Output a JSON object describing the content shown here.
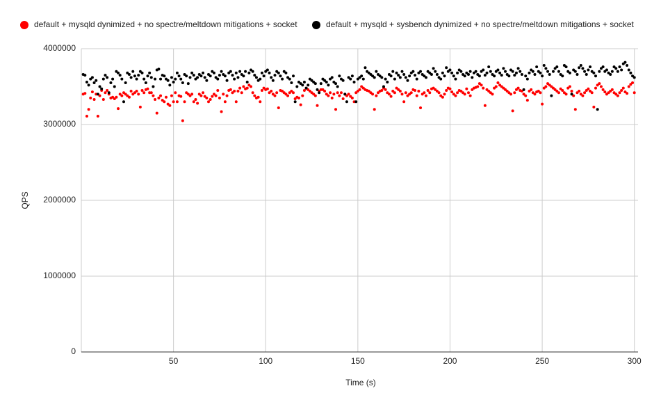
{
  "chart_data": {
    "type": "scatter",
    "x_label": "Time (s)",
    "y_label": "QPS",
    "xlim": [
      0,
      302
    ],
    "xticks": [
      50,
      100,
      150,
      200,
      250,
      300
    ],
    "ylim": [
      0,
      4000000
    ],
    "yticks": [
      0,
      1000000,
      2000000,
      3000000,
      4000000
    ],
    "grid": true,
    "legend": "top",
    "x": [
      1,
      2,
      3,
      4,
      5,
      6,
      7,
      8,
      9,
      10,
      11,
      12,
      13,
      14,
      15,
      16,
      17,
      18,
      19,
      20,
      21,
      22,
      23,
      24,
      25,
      26,
      27,
      28,
      29,
      30,
      31,
      32,
      33,
      34,
      35,
      36,
      37,
      38,
      39,
      40,
      41,
      42,
      43,
      44,
      45,
      46,
      47,
      48,
      49,
      50,
      51,
      52,
      53,
      54,
      55,
      56,
      57,
      58,
      59,
      60,
      61,
      62,
      63,
      64,
      65,
      66,
      67,
      68,
      69,
      70,
      71,
      72,
      73,
      74,
      75,
      76,
      77,
      78,
      79,
      80,
      81,
      82,
      83,
      84,
      85,
      86,
      87,
      88,
      89,
      90,
      91,
      92,
      93,
      94,
      95,
      96,
      97,
      98,
      99,
      100,
      101,
      102,
      103,
      104,
      105,
      106,
      107,
      108,
      109,
      110,
      111,
      112,
      113,
      114,
      115,
      116,
      117,
      118,
      119,
      120,
      121,
      122,
      123,
      124,
      125,
      126,
      127,
      128,
      129,
      130,
      131,
      132,
      133,
      134,
      135,
      136,
      137,
      138,
      139,
      140,
      141,
      142,
      143,
      144,
      145,
      146,
      147,
      148,
      149,
      150,
      151,
      152,
      153,
      154,
      155,
      156,
      157,
      158,
      159,
      160,
      161,
      162,
      163,
      164,
      165,
      166,
      167,
      168,
      169,
      170,
      171,
      172,
      173,
      174,
      175,
      176,
      177,
      178,
      179,
      180,
      181,
      182,
      183,
      184,
      185,
      186,
      187,
      188,
      189,
      190,
      191,
      192,
      193,
      194,
      195,
      196,
      197,
      198,
      199,
      200,
      201,
      202,
      203,
      204,
      205,
      206,
      207,
      208,
      209,
      210,
      211,
      212,
      213,
      214,
      215,
      216,
      217,
      218,
      219,
      220,
      221,
      222,
      223,
      224,
      225,
      226,
      227,
      228,
      229,
      230,
      231,
      232,
      233,
      234,
      235,
      236,
      237,
      238,
      239,
      240,
      241,
      242,
      243,
      244,
      245,
      246,
      247,
      248,
      249,
      250,
      251,
      252,
      253,
      254,
      255,
      256,
      257,
      258,
      259,
      260,
      261,
      262,
      263,
      264,
      265,
      266,
      267,
      268,
      269,
      270,
      271,
      272,
      273,
      274,
      275,
      276,
      277,
      278,
      279,
      280,
      281,
      282,
      283,
      284,
      285,
      286,
      287,
      288,
      289,
      290,
      291,
      292,
      293,
      294,
      295,
      296,
      297,
      298,
      299,
      300
    ],
    "series": [
      {
        "name": "default + mysqld dynimized + no spectre/meltdown mitigations + socket",
        "color": "#ff0000",
        "values": [
          3400000,
          3410000,
          3110000,
          3200000,
          3350000,
          3430000,
          3330000,
          3400000,
          3110000,
          3380000,
          3450000,
          3330000,
          3420000,
          3450000,
          3400000,
          3350000,
          3360000,
          3340000,
          3360000,
          3210000,
          3400000,
          3380000,
          3420000,
          3400000,
          3380000,
          3360000,
          3440000,
          3400000,
          3420000,
          3440000,
          3400000,
          3230000,
          3450000,
          3420000,
          3460000,
          3470000,
          3420000,
          3420000,
          3380000,
          3330000,
          3150000,
          3350000,
          3380000,
          3320000,
          3300000,
          3360000,
          3270000,
          3250000,
          3380000,
          3300000,
          3420000,
          3300000,
          3380000,
          3370000,
          3050000,
          3300000,
          3420000,
          3400000,
          3380000,
          3400000,
          3300000,
          3330000,
          3280000,
          3400000,
          3380000,
          3420000,
          3370000,
          3350000,
          3300000,
          3330000,
          3370000,
          3400000,
          3380000,
          3450000,
          3350000,
          3170000,
          3400000,
          3300000,
          3380000,
          3450000,
          3460000,
          3420000,
          3440000,
          3300000,
          3440000,
          3480000,
          3420000,
          3500000,
          3470000,
          3480000,
          3520000,
          3500000,
          3420000,
          3380000,
          3350000,
          3360000,
          3300000,
          3450000,
          3480000,
          3460000,
          3470000,
          3420000,
          3440000,
          3400000,
          3380000,
          3420000,
          3220000,
          3450000,
          3440000,
          3420000,
          3400000,
          3380000,
          3420000,
          3440000,
          3420000,
          3340000,
          3360000,
          3350000,
          3260000,
          3380000,
          3450000,
          3480000,
          3460000,
          3440000,
          3420000,
          3400000,
          3380000,
          3250000,
          3440000,
          3460000,
          3460000,
          3440000,
          3400000,
          3380000,
          3420000,
          3350000,
          3400000,
          3200000,
          3420000,
          3380000,
          3420000,
          3340000,
          3400000,
          3380000,
          3400000,
          3370000,
          3350000,
          3300000,
          3420000,
          3440000,
          3460000,
          3500000,
          3480000,
          3460000,
          3450000,
          3440000,
          3420000,
          3400000,
          3200000,
          3380000,
          3420000,
          3440000,
          3450000,
          3480000,
          3460000,
          3420000,
          3400000,
          3370000,
          3440000,
          3420000,
          3480000,
          3460000,
          3440000,
          3400000,
          3300000,
          3420000,
          3380000,
          3400000,
          3420000,
          3460000,
          3450000,
          3380000,
          3440000,
          3220000,
          3400000,
          3420000,
          3380000,
          3450000,
          3420000,
          3470000,
          3480000,
          3460000,
          3440000,
          3420000,
          3380000,
          3360000,
          3400000,
          3450000,
          3480000,
          3470000,
          3430000,
          3400000,
          3380000,
          3420000,
          3450000,
          3440000,
          3420000,
          3400000,
          3470000,
          3420000,
          3380000,
          3460000,
          3480000,
          3490000,
          3500000,
          3540000,
          3520000,
          3480000,
          3250000,
          3460000,
          3440000,
          3420000,
          3400000,
          3480000,
          3500000,
          3550000,
          3520000,
          3500000,
          3480000,
          3460000,
          3440000,
          3420000,
          3400000,
          3180000,
          3420000,
          3460000,
          3480000,
          3450000,
          3440000,
          3400000,
          3380000,
          3320000,
          3440000,
          3460000,
          3420000,
          3400000,
          3430000,
          3440000,
          3420000,
          3270000,
          3480000,
          3500000,
          3540000,
          3520000,
          3500000,
          3480000,
          3460000,
          3440000,
          3420000,
          3470000,
          3450000,
          3420000,
          3400000,
          3480000,
          3500000,
          3440000,
          3380000,
          3200000,
          3420000,
          3440000,
          3400000,
          3380000,
          3420000,
          3450000,
          3470000,
          3440000,
          3420000,
          3230000,
          3480000,
          3520000,
          3540000,
          3500000,
          3460000,
          3430000,
          3400000,
          3420000,
          3440000,
          3460000,
          3420000,
          3400000,
          3380000,
          3420000,
          3450000,
          3480000,
          3430000,
          3410000,
          3500000,
          3530000,
          3550000,
          3420000
        ]
      },
      {
        "name": "default + mysqld + sysbench dynimized + no spectre/meltdown mitigations + socket",
        "color": "#000000",
        "values": [
          3660000,
          3650000,
          3560000,
          3520000,
          3600000,
          3620000,
          3550000,
          3580000,
          3400000,
          3500000,
          3470000,
          3600000,
          3650000,
          3620000,
          3420000,
          3550000,
          3600000,
          3500000,
          3700000,
          3680000,
          3650000,
          3600000,
          3300000,
          3550000,
          3680000,
          3660000,
          3620000,
          3700000,
          3640000,
          3600000,
          3650000,
          3700000,
          3680000,
          3600000,
          3550000,
          3640000,
          3680000,
          3620000,
          3500000,
          3600000,
          3720000,
          3730000,
          3600000,
          3650000,
          3640000,
          3600000,
          3580000,
          3520000,
          3620000,
          3560000,
          3600000,
          3680000,
          3640000,
          3600000,
          3550000,
          3660000,
          3640000,
          3540000,
          3620000,
          3680000,
          3650000,
          3600000,
          3620000,
          3660000,
          3640000,
          3680000,
          3620000,
          3580000,
          3660000,
          3640000,
          3700000,
          3680000,
          3620000,
          3600000,
          3650000,
          3700000,
          3660000,
          3640000,
          3580000,
          3680000,
          3700000,
          3650000,
          3600000,
          3680000,
          3620000,
          3700000,
          3660000,
          3640000,
          3700000,
          3560000,
          3680000,
          3720000,
          3700000,
          3650000,
          3620000,
          3580000,
          3600000,
          3680000,
          3640000,
          3700000,
          3720000,
          3680000,
          3620000,
          3580000,
          3650000,
          3700000,
          3680000,
          3640000,
          3600000,
          3700000,
          3680000,
          3620000,
          3600000,
          3550000,
          3640000,
          3300000,
          3500000,
          3560000,
          3540000,
          3520000,
          3560000,
          3480000,
          3520000,
          3600000,
          3580000,
          3560000,
          3540000,
          3460000,
          3420000,
          3540000,
          3600000,
          3580000,
          3560000,
          3520000,
          3600000,
          3620000,
          3560000,
          3540000,
          3500000,
          3640000,
          3600000,
          3580000,
          3400000,
          3300000,
          3620000,
          3600000,
          3640000,
          3560000,
          3300000,
          3600000,
          3620000,
          3640000,
          3600000,
          3750000,
          3700000,
          3680000,
          3660000,
          3640000,
          3620000,
          3700000,
          3660000,
          3640000,
          3620000,
          3500000,
          3600000,
          3560000,
          3660000,
          3640000,
          3700000,
          3600000,
          3680000,
          3650000,
          3620000,
          3700000,
          3660000,
          3620000,
          3580000,
          3640000,
          3680000,
          3700000,
          3650000,
          3600000,
          3680000,
          3700000,
          3660000,
          3640000,
          3620000,
          3700000,
          3680000,
          3660000,
          3740000,
          3700000,
          3660000,
          3620000,
          3600000,
          3680000,
          3640000,
          3750000,
          3700000,
          3720000,
          3680000,
          3640000,
          3600000,
          3680000,
          3720000,
          3700000,
          3660000,
          3640000,
          3680000,
          3660000,
          3700000,
          3620000,
          3680000,
          3700000,
          3660000,
          3640000,
          3700000,
          3720000,
          3650000,
          3680000,
          3760000,
          3700000,
          3660000,
          3640000,
          3700000,
          3720000,
          3680000,
          3650000,
          3740000,
          3700000,
          3660000,
          3640000,
          3720000,
          3700000,
          3650000,
          3680000,
          3740000,
          3700000,
          3660000,
          3460000,
          3640000,
          3600000,
          3680000,
          3720000,
          3700000,
          3660000,
          3760000,
          3700000,
          3680000,
          3640000,
          3780000,
          3740000,
          3700000,
          3660000,
          3380000,
          3700000,
          3740000,
          3760000,
          3700000,
          3660000,
          3640000,
          3780000,
          3760000,
          3700000,
          3680000,
          3400000,
          3720000,
          3700000,
          3660000,
          3750000,
          3780000,
          3740000,
          3700000,
          3660000,
          3720000,
          3760000,
          3700000,
          3680000,
          3640000,
          3200000,
          3700000,
          3740000,
          3760000,
          3700000,
          3720000,
          3680000,
          3660000,
          3700000,
          3760000,
          3740000,
          3700000,
          3760000,
          3720000,
          3800000,
          3820000,
          3780000,
          3720000,
          3680000,
          3640000,
          3620000
        ]
      }
    ]
  }
}
